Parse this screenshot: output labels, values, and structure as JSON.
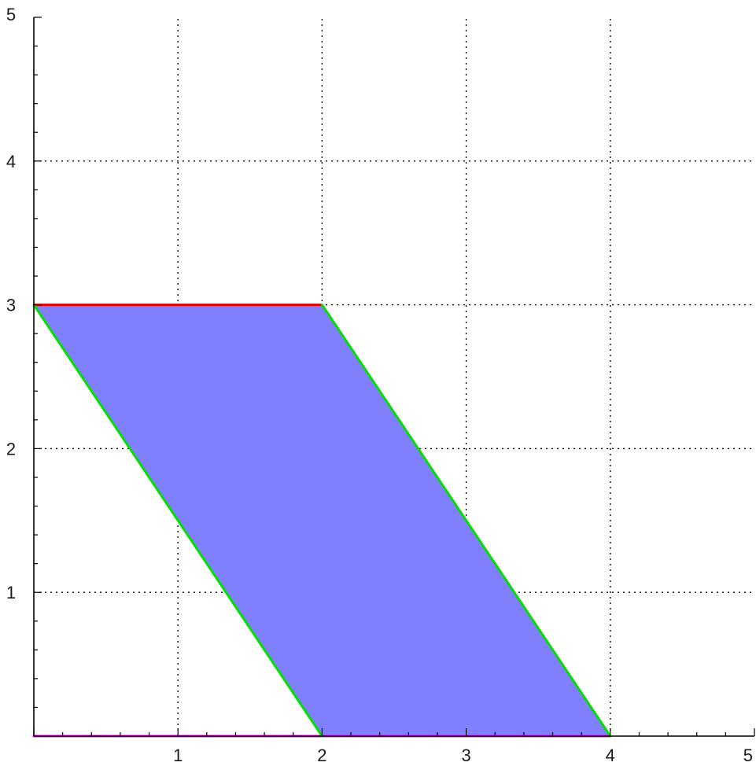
{
  "chart_data": {
    "type": "area",
    "title": "",
    "xlabel": "",
    "ylabel": "",
    "xlim": [
      0,
      5
    ],
    "ylim": [
      0,
      5
    ],
    "xticks": [
      1,
      2,
      3,
      4,
      5
    ],
    "yticks": [
      1,
      2,
      3,
      4,
      5
    ],
    "xtick_labels": [
      "1",
      "2",
      "3",
      "4",
      "5"
    ],
    "ytick_labels": [
      "1",
      "2",
      "3",
      "4",
      "5"
    ],
    "grid": true,
    "grid_style": "dotted",
    "minor_ticks_per_unit": 5,
    "region": {
      "polygon": [
        [
          0,
          3
        ],
        [
          2,
          3
        ],
        [
          4,
          0
        ],
        [
          2,
          0
        ]
      ],
      "fill_color": "#8080ff"
    },
    "lines": [
      {
        "x": [
          0,
          2
        ],
        "y": [
          3,
          3
        ],
        "color": "#e00000"
      },
      {
        "x": [
          0,
          4
        ],
        "y": [
          0,
          0
        ],
        "color": "#ff00ff"
      },
      {
        "x": [
          0,
          2
        ],
        "y": [
          3,
          0
        ],
        "color": "#00e000"
      },
      {
        "x": [
          2,
          4
        ],
        "y": [
          3,
          0
        ],
        "color": "#00e000"
      }
    ]
  }
}
